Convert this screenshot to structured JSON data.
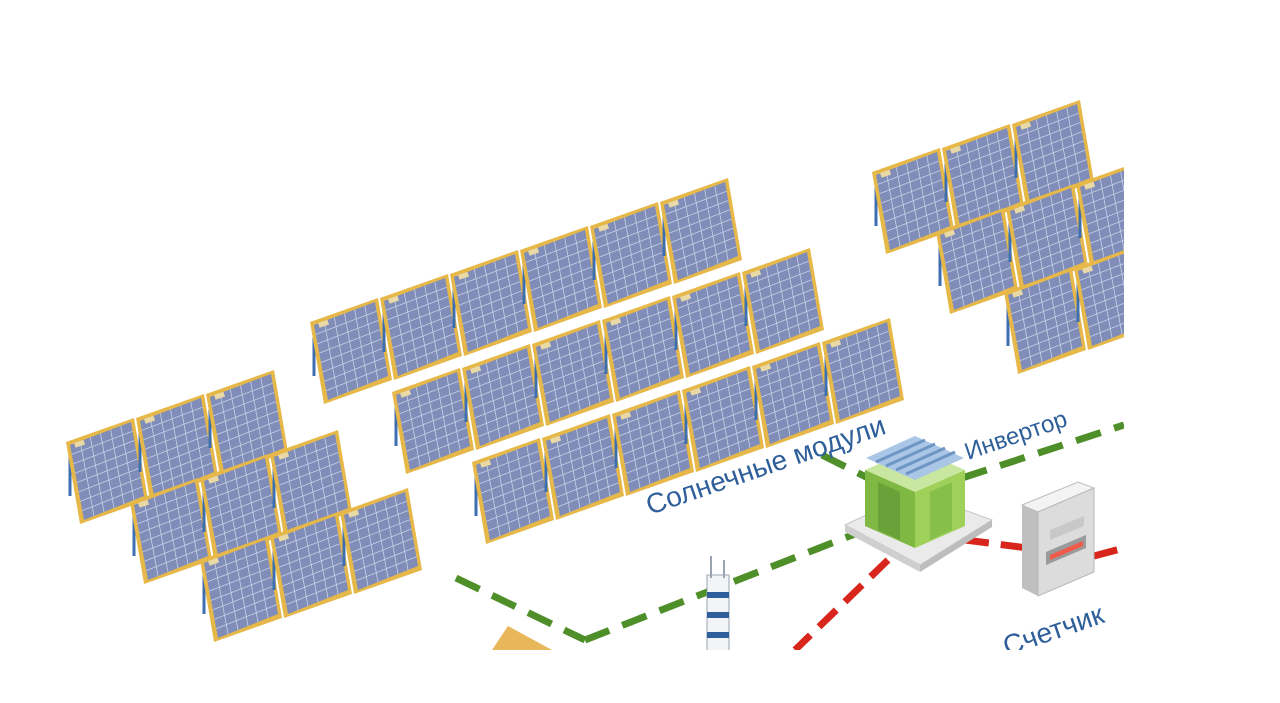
{
  "labels": {
    "solar_modules": "Солнечные модули",
    "inverter": "Инвертор",
    "meter": "Счетчик"
  },
  "colors": {
    "panel_frame": "#e6b84a",
    "panel_cell": "#7f8db8",
    "panel_grid": "#c9d0e6",
    "stand": "#3d6fb0",
    "dc_line": "#4f8f2a",
    "ac_line": "#d8261c",
    "label_text": "#2f5f9a",
    "inverter_green": "#8dc63f",
    "meter_body": "#d9d9d9"
  },
  "panel_groups": [
    {
      "name": "left-array",
      "rows": 3,
      "cols": 3
    },
    {
      "name": "center-array",
      "rows": 3,
      "cols": 6
    },
    {
      "name": "right-array",
      "rows": 3,
      "cols": 3
    }
  ]
}
